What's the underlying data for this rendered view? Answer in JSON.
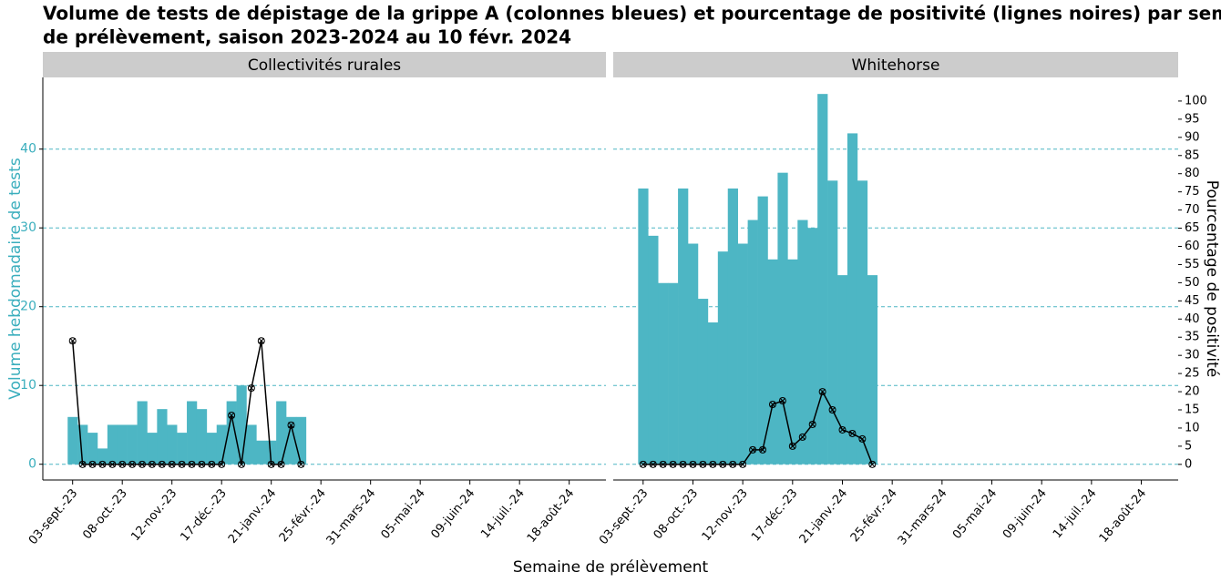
{
  "chart_data": {
    "type": "bar",
    "title": "Volume de tests de dépistage de la grippe A (colonnes bleues) et pourcentage de positivité (lignes noires) par semaine",
    "title_line2": "de prélèvement, saison 2023-2024 au 10 févr. 2024",
    "x_label": "Semaine de prélèvement",
    "y_label": "Volume hebdomadaire de tests",
    "y2_label": "Pourcentage de positivité",
    "xlim": [
      -3,
      53.7
    ],
    "xticks": [
      {
        "value": 0,
        "label": "03-sept.-23"
      },
      {
        "value": 5,
        "label": "08-oct.-23"
      },
      {
        "value": 10,
        "label": "12-nov.-23"
      },
      {
        "value": 15,
        "label": "17-déc.-23"
      },
      {
        "value": 20,
        "label": "21-janv.-24"
      },
      {
        "value": 25,
        "label": "25-févr.-24"
      },
      {
        "value": 30,
        "label": "31-mars-24"
      },
      {
        "value": 35,
        "label": "05-mai-24"
      },
      {
        "value": 40,
        "label": "09-juin-24"
      },
      {
        "value": 45,
        "label": "14-juil.-24"
      },
      {
        "value": 50,
        "label": "18-août-24"
      }
    ],
    "ylim": [
      -2,
      49.1
    ],
    "yticks": [
      0,
      10,
      20,
      30,
      40
    ],
    "y2lim": [
      -4.3,
      106.5
    ],
    "y2ticks": [
      0,
      5,
      10,
      15,
      20,
      25,
      30,
      35,
      40,
      45,
      50,
      55,
      60,
      65,
      70,
      75,
      80,
      85,
      90,
      95,
      100
    ],
    "grid": true,
    "panels": [
      {
        "title": "Collectivités rurales",
        "x": [
          0,
          1,
          2,
          3,
          4,
          5,
          6,
          7,
          8,
          9,
          10,
          11,
          12,
          13,
          14,
          15,
          16,
          17,
          18,
          19,
          20,
          21,
          22,
          23
        ],
        "series": [
          {
            "type": "bar",
            "color": "#4db6c4",
            "values": [
              6,
              5,
              4,
              2,
              5,
              5,
              5,
              8,
              4,
              7,
              5,
              4,
              8,
              7,
              4,
              5,
              8,
              10,
              5,
              3,
              3,
              8,
              6,
              6
            ]
          },
          {
            "type": "line",
            "axis": "y2",
            "color": "#000000",
            "values": [
              34,
              0,
              0,
              0,
              0,
              0,
              0,
              0,
              0,
              0,
              0,
              0,
              0,
              0,
              0,
              0,
              13.5,
              0,
              21,
              34,
              0,
              0,
              10.8,
              0
            ]
          }
        ]
      },
      {
        "title": "Whitehorse",
        "x": [
          0,
          1,
          2,
          3,
          4,
          5,
          6,
          7,
          8,
          9,
          10,
          11,
          12,
          13,
          14,
          15,
          16,
          17,
          18,
          19,
          20,
          21,
          22,
          23
        ],
        "series": [
          {
            "type": "bar",
            "color": "#4db6c4",
            "values": [
              35,
              29,
              23,
              23,
              35,
              28,
              21,
              18,
              27,
              35,
              28,
              31,
              34,
              26,
              37,
              26,
              31,
              30,
              47,
              36,
              24,
              42,
              36,
              24
            ]
          },
          {
            "type": "line",
            "axis": "y2",
            "color": "#000000",
            "values": [
              0,
              0,
              0,
              0,
              0,
              0,
              0,
              0,
              0,
              0,
              0,
              4,
              4,
              16.5,
              17.5,
              5,
              7.5,
              11,
              20,
              15,
              9.5,
              8.5,
              7,
              0
            ]
          }
        ]
      }
    ]
  }
}
